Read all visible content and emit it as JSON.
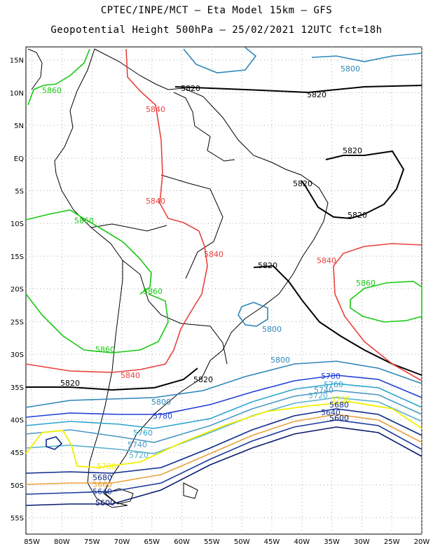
{
  "title_line1": "CPTEC/INPE/MCT –  Eta Model 15km – GFS",
  "title_line2": "Geopotential Height 500hPa – 25/02/2021 12UTC fct=18h",
  "lat_labels": [
    "15N",
    "10N",
    "5N",
    "EQ",
    "5S",
    "10S",
    "15S",
    "20S",
    "25S",
    "30S",
    "35S",
    "40S",
    "45S",
    "50S",
    "55S"
  ],
  "lon_labels": [
    "85W",
    "80W",
    "75W",
    "70W",
    "65W",
    "60W",
    "55W",
    "50W",
    "45W",
    "40W",
    "35W",
    "30W",
    "25W",
    "20W"
  ],
  "colors": {
    "c5820": "#000000",
    "c5840": "#e8413c",
    "c5860": "#19c812",
    "c5800": "#2e86b8",
    "c5780": "#1f3fd6",
    "c5760": "#2aa5d0",
    "c5740": "#4a98c4",
    "c5720": "#58b0cc",
    "c5700": "#f0f000",
    "c5680": "#0c2a8a",
    "c5660": "#e8a23a",
    "c5640": "#1a3a9a",
    "c5600": "#0a1a6a",
    "grid": "#aaaaaa",
    "land": "#000000"
  },
  "contour_labels": [
    {
      "text": "5820",
      "color": "c5820"
    },
    {
      "text": "5820",
      "color": "c5820"
    },
    {
      "text": "5820",
      "color": "c5820"
    },
    {
      "text": "5820",
      "color": "c5820"
    },
    {
      "text": "5820",
      "color": "c5820"
    },
    {
      "text": "5820",
      "color": "c5820"
    },
    {
      "text": "5820",
      "color": "c5820"
    },
    {
      "text": "5820",
      "color": "c5820"
    },
    {
      "text": "5840",
      "color": "c5840"
    },
    {
      "text": "5840",
      "color": "c5840"
    },
    {
      "text": "5840",
      "color": "c5840"
    },
    {
      "text": "5840",
      "color": "c5840"
    },
    {
      "text": "5840",
      "color": "c5840"
    },
    {
      "text": "5860",
      "color": "c5860"
    },
    {
      "text": "5860",
      "color": "c5860"
    },
    {
      "text": "5860",
      "color": "c5860"
    },
    {
      "text": "5860",
      "color": "c5860"
    },
    {
      "text": "5860",
      "color": "c5860"
    },
    {
      "text": "5800",
      "color": "c5800"
    },
    {
      "text": "5800",
      "color": "c5800"
    },
    {
      "text": "5800",
      "color": "c5800"
    },
    {
      "text": "5800",
      "color": "c5800"
    },
    {
      "text": "5780",
      "color": "c5780"
    },
    {
      "text": "5780",
      "color": "c5780"
    },
    {
      "text": "5760",
      "color": "c5760"
    },
    {
      "text": "5760",
      "color": "c5760"
    },
    {
      "text": "5740",
      "color": "c5740"
    },
    {
      "text": "5740",
      "color": "c5740"
    },
    {
      "text": "5720",
      "color": "c5720"
    },
    {
      "text": "5720",
      "color": "c5720"
    },
    {
      "text": "5700",
      "color": "c5700"
    },
    {
      "text": "5700",
      "color": "c5700"
    },
    {
      "text": "5680",
      "color": "c5680"
    },
    {
      "text": "5680",
      "color": "c5680"
    },
    {
      "text": "5660",
      "color": "c5660"
    },
    {
      "text": "5640",
      "color": "c5640"
    },
    {
      "text": "5640",
      "color": "c5640"
    },
    {
      "text": "5600",
      "color": "c5600"
    },
    {
      "text": "5600",
      "color": "c5600"
    }
  ]
}
